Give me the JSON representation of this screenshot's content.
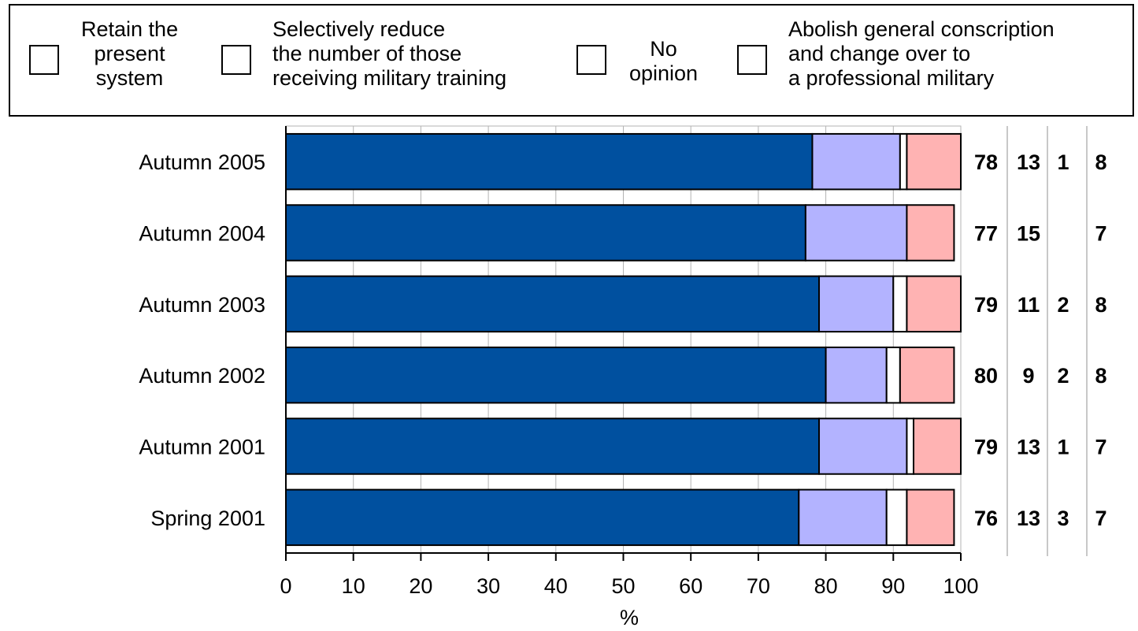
{
  "chart_data": {
    "type": "bar",
    "stacked": true,
    "orientation": "horizontal",
    "categories": [
      "Autumn 2005",
      "Autumn 2004",
      "Autumn 2003",
      "Autumn 2002",
      "Autumn 2001",
      "Spring 2001"
    ],
    "series": [
      {
        "name": "Retain the\npresent\nsystem",
        "color": "#00509f",
        "values": [
          78,
          77,
          79,
          80,
          79,
          76
        ],
        "labels": [
          "78",
          "77",
          "79",
          "80",
          "79",
          "76"
        ]
      },
      {
        "name": "Selectively reduce\nthe number of those\nreceiving military training",
        "color": "#b3b3ff",
        "values": [
          13,
          15,
          11,
          9,
          13,
          13
        ],
        "labels": [
          "13",
          "15",
          "11",
          "9",
          "13",
          "13"
        ]
      },
      {
        "name": "No\nopinion",
        "color": "#ffffff",
        "values": [
          1,
          0,
          2,
          2,
          1,
          3
        ],
        "labels": [
          "1",
          "",
          "2",
          "2",
          "1",
          "3"
        ]
      },
      {
        "name": "Abolish general conscription\nand change over to\na professional military",
        "color": "#ffb3b3",
        "values": [
          8,
          7,
          8,
          8,
          7,
          7
        ],
        "labels": [
          "8",
          "7",
          "8",
          "8",
          "7",
          "7"
        ]
      }
    ],
    "xlabel": "%",
    "xlim": [
      0,
      100
    ],
    "x_ticks": [
      "0",
      "10",
      "20",
      "30",
      "40",
      "50",
      "60",
      "70",
      "80",
      "90",
      "100"
    ],
    "grid": true,
    "legend_position": "top"
  }
}
